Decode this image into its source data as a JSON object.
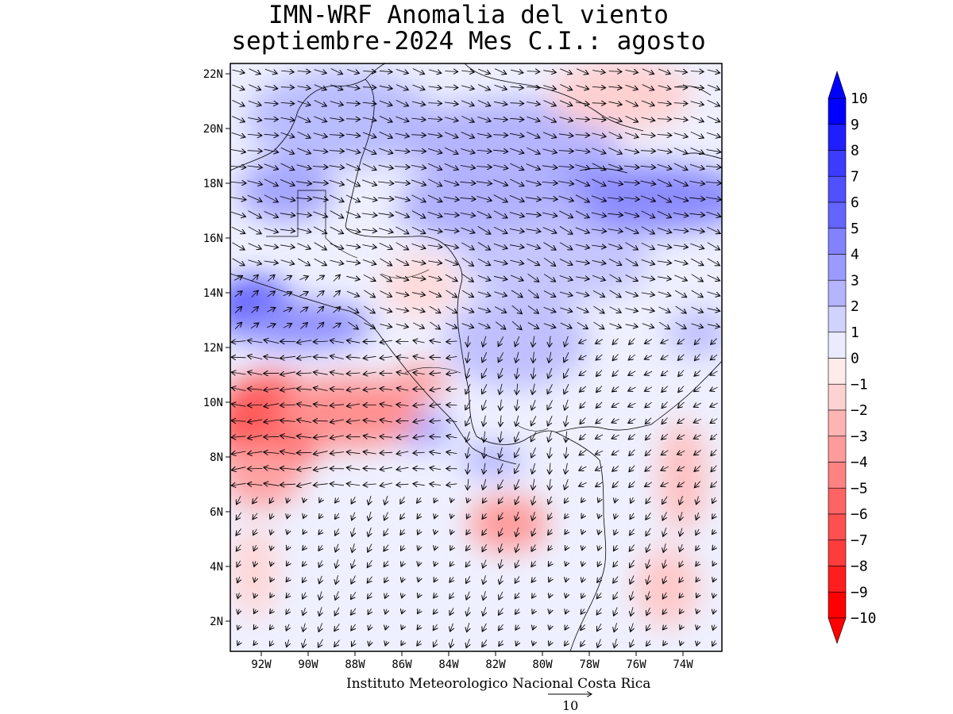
{
  "title": {
    "line1": "IMN-WRF Anomalia del viento",
    "line2": "septiembre-2024 Mes C.I.: agosto"
  },
  "map_axes": {
    "lat_labels": [
      "22N",
      "20N",
      "18N",
      "16N",
      "14N",
      "12N",
      "10N",
      "8N",
      "6N",
      "4N",
      "2N"
    ],
    "lon_labels": [
      "92W",
      "90W",
      "88W",
      "86W",
      "84W",
      "82W",
      "80W",
      "78W",
      "76W",
      "74W"
    ]
  },
  "colorbar": {
    "levels": [
      "10",
      "9",
      "8",
      "7",
      "6",
      "5",
      "4",
      "3",
      "2",
      "1",
      "0",
      "−1",
      "−2",
      "−3",
      "−4",
      "−5",
      "−6",
      "−7",
      "−8",
      "−9",
      "−10"
    ],
    "colors": [
      "#0000ff",
      "#1e1eff",
      "#3c3cff",
      "#5050ff",
      "#6464ff",
      "#8282ff",
      "#9b9bff",
      "#b4b4ff",
      "#d2d2ff",
      "#ebebff",
      "#ffebeb",
      "#ffd2d2",
      "#ffb4b4",
      "#ff9b9b",
      "#ff8282",
      "#ff6464",
      "#ff5050",
      "#ff3c3c",
      "#ff1e1e",
      "#ff0000"
    ]
  },
  "footer": {
    "credit": "Instituto Meteorologico Nacional Costa Rica",
    "vector_scale": "10"
  }
}
